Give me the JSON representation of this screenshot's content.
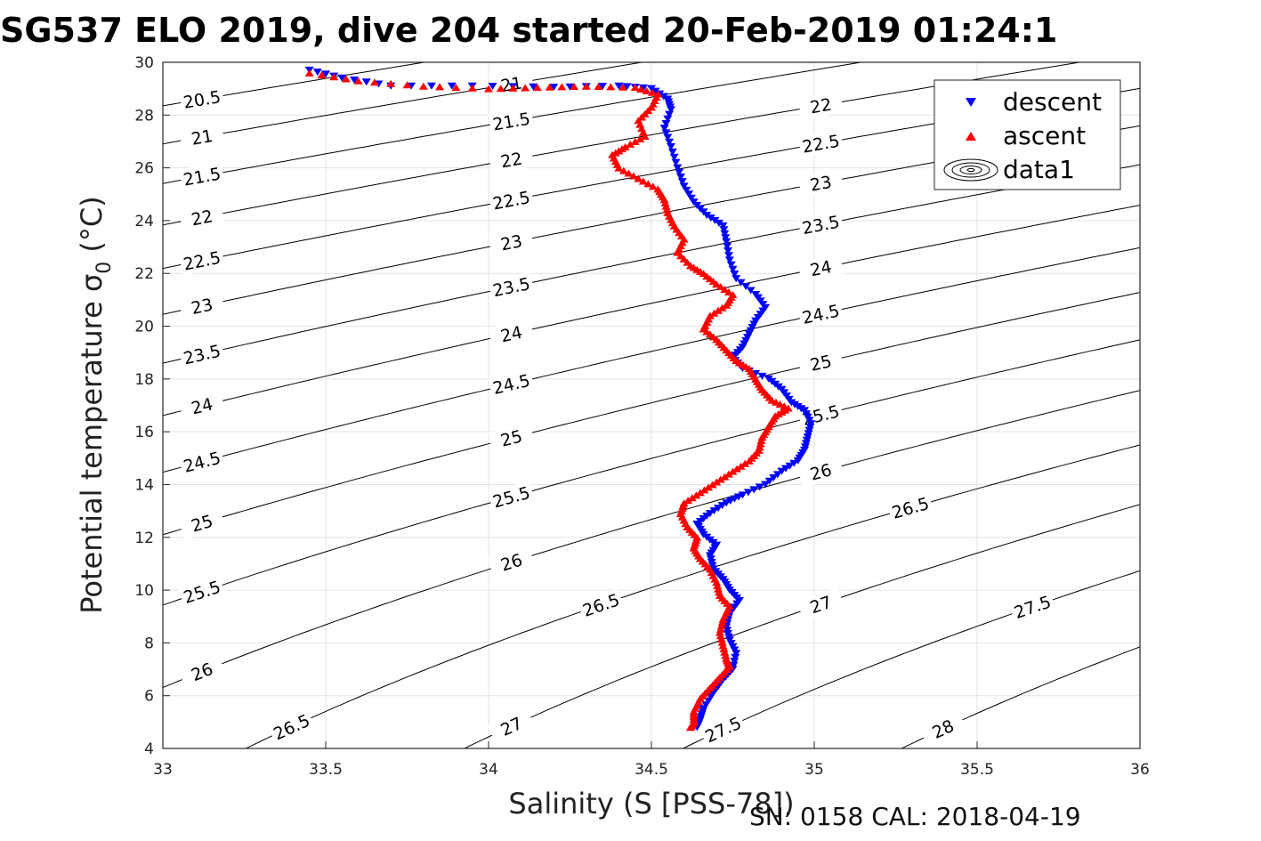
{
  "title": "SG537 ELO 2019, dive 204 started 20-Feb-2019 01:24:1",
  "footer": "SN: 0158  CAL: 2018-04-19",
  "chart_data": {
    "type": "scatter",
    "xlabel": "Salinity (S [PSS-78])",
    "ylabel_main": "Potential temperature σ",
    "ylabel_sub": "0",
    "ylabel_unit": " (°C)",
    "xlim": [
      33,
      36
    ],
    "ylim": [
      4,
      30
    ],
    "xticks": [
      33,
      33.5,
      34,
      34.5,
      35,
      35.5,
      36
    ],
    "yticks": [
      4,
      6,
      8,
      10,
      12,
      14,
      16,
      18,
      20,
      22,
      24,
      26,
      28,
      30
    ],
    "grid": true,
    "legend": {
      "placement": "top-right",
      "entries": [
        "descent",
        "ascent",
        "data1"
      ]
    },
    "colors": {
      "descent": "#0000ff",
      "ascent": "#ff0000",
      "contour": "#000000"
    },
    "contours": {
      "name": "data1",
      "levels": [
        20.5,
        21,
        21.5,
        22,
        22.5,
        23,
        23.5,
        24,
        24.5,
        25,
        25.5,
        26,
        26.5,
        27,
        27.5,
        28
      ],
      "label_texts": [
        "20.5",
        "21",
        "21.5",
        "22",
        "22.5",
        "23",
        "23.5",
        "24",
        "24.5",
        "25",
        "25.5",
        "26",
        "26.5",
        "27",
        "27.5",
        "28"
      ]
    },
    "series": [
      {
        "name": "descent",
        "marker": "triangle-down",
        "points": [
          [
            33.45,
            29.7
          ],
          [
            33.55,
            29.4
          ],
          [
            33.7,
            29.1
          ],
          [
            33.95,
            29.1
          ],
          [
            34.2,
            29.05
          ],
          [
            34.4,
            29.1
          ],
          [
            34.5,
            29.0
          ],
          [
            34.55,
            28.6
          ],
          [
            34.56,
            28.2
          ],
          [
            34.54,
            27.5
          ],
          [
            34.56,
            26.8
          ],
          [
            34.58,
            26.0
          ],
          [
            34.6,
            25.3
          ],
          [
            34.63,
            24.7
          ],
          [
            34.67,
            24.2
          ],
          [
            34.72,
            23.8
          ],
          [
            34.73,
            23.2
          ],
          [
            34.74,
            22.5
          ],
          [
            34.76,
            21.8
          ],
          [
            34.82,
            21.2
          ],
          [
            34.85,
            20.7
          ],
          [
            34.82,
            20.2
          ],
          [
            34.8,
            19.7
          ],
          [
            34.78,
            19.2
          ],
          [
            34.75,
            18.8
          ],
          [
            34.78,
            18.4
          ],
          [
            34.86,
            18.0
          ],
          [
            34.9,
            17.6
          ],
          [
            34.93,
            17.1
          ],
          [
            34.97,
            16.8
          ],
          [
            34.99,
            16.3
          ],
          [
            34.98,
            15.8
          ],
          [
            34.97,
            15.3
          ],
          [
            34.95,
            14.9
          ],
          [
            34.9,
            14.5
          ],
          [
            34.85,
            14.0
          ],
          [
            34.78,
            13.6
          ],
          [
            34.73,
            13.3
          ],
          [
            34.68,
            12.9
          ],
          [
            34.64,
            12.5
          ],
          [
            34.66,
            12.1
          ],
          [
            34.7,
            11.7
          ],
          [
            34.68,
            11.3
          ],
          [
            34.69,
            10.8
          ],
          [
            34.72,
            10.4
          ],
          [
            34.74,
            10.0
          ],
          [
            34.77,
            9.6
          ],
          [
            34.74,
            9.1
          ],
          [
            34.73,
            8.6
          ],
          [
            34.74,
            8.1
          ],
          [
            34.76,
            7.6
          ],
          [
            34.75,
            7.0
          ],
          [
            34.72,
            6.6
          ],
          [
            34.69,
            6.1
          ],
          [
            34.66,
            5.5
          ],
          [
            34.65,
            5.1
          ],
          [
            34.64,
            4.8
          ]
        ]
      },
      {
        "name": "ascent",
        "marker": "triangle-up",
        "points": [
          [
            33.45,
            29.6
          ],
          [
            33.6,
            29.3
          ],
          [
            33.8,
            29.1
          ],
          [
            34.0,
            29.0
          ],
          [
            34.15,
            29.05
          ],
          [
            34.3,
            29.1
          ],
          [
            34.45,
            29.05
          ],
          [
            34.52,
            28.8
          ],
          [
            34.5,
            28.3
          ],
          [
            34.46,
            27.8
          ],
          [
            34.48,
            27.2
          ],
          [
            34.42,
            26.8
          ],
          [
            34.38,
            26.5
          ],
          [
            34.4,
            26.0
          ],
          [
            34.46,
            25.6
          ],
          [
            34.52,
            25.2
          ],
          [
            34.54,
            24.8
          ],
          [
            34.55,
            24.3
          ],
          [
            34.57,
            23.8
          ],
          [
            34.6,
            23.3
          ],
          [
            34.58,
            22.8
          ],
          [
            34.62,
            22.3
          ],
          [
            34.66,
            22.0
          ],
          [
            34.7,
            21.6
          ],
          [
            34.75,
            21.2
          ],
          [
            34.73,
            20.8
          ],
          [
            34.68,
            20.4
          ],
          [
            34.66,
            19.9
          ],
          [
            34.7,
            19.5
          ],
          [
            34.73,
            19.1
          ],
          [
            34.76,
            18.7
          ],
          [
            34.8,
            18.4
          ],
          [
            34.82,
            18.0
          ],
          [
            34.84,
            17.6
          ],
          [
            34.87,
            17.2
          ],
          [
            34.92,
            16.9
          ],
          [
            34.88,
            16.6
          ],
          [
            34.86,
            16.2
          ],
          [
            34.84,
            15.8
          ],
          [
            34.83,
            15.3
          ],
          [
            34.8,
            14.9
          ],
          [
            34.75,
            14.5
          ],
          [
            34.7,
            14.1
          ],
          [
            34.65,
            13.7
          ],
          [
            34.6,
            13.3
          ],
          [
            34.59,
            12.9
          ],
          [
            34.61,
            12.4
          ],
          [
            34.64,
            12.0
          ],
          [
            34.63,
            11.6
          ],
          [
            34.65,
            11.2
          ],
          [
            34.68,
            10.8
          ],
          [
            34.7,
            10.3
          ],
          [
            34.71,
            9.8
          ],
          [
            34.74,
            9.4
          ],
          [
            34.72,
            8.9
          ],
          [
            34.71,
            8.4
          ],
          [
            34.72,
            7.9
          ],
          [
            34.73,
            7.4
          ],
          [
            34.74,
            7.1
          ],
          [
            34.71,
            6.7
          ],
          [
            34.68,
            6.3
          ],
          [
            34.65,
            5.9
          ],
          [
            34.63,
            5.4
          ],
          [
            34.63,
            5.0
          ],
          [
            34.62,
            4.8
          ]
        ]
      }
    ]
  }
}
